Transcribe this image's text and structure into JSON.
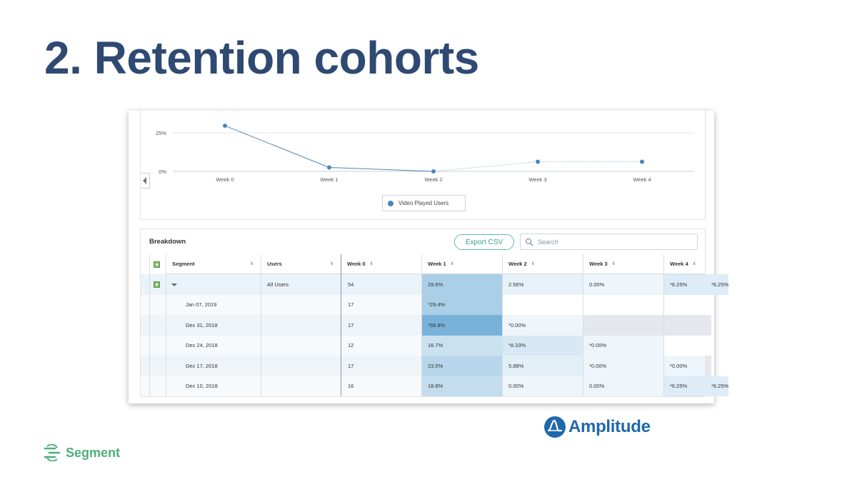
{
  "slide": {
    "title": "2. Retention cohorts"
  },
  "chart_data": {
    "type": "line",
    "categories": [
      "Week 0",
      "Week 1",
      "Week 2",
      "Week 3",
      "Week 4"
    ],
    "series": [
      {
        "name": "Video Played Users",
        "values": [
          29.6,
          2.56,
          0.0,
          6.25,
          6.25
        ],
        "color": "#4a86b8",
        "dotted_from_index": 2
      }
    ],
    "yticks": [
      "25%",
      "0%"
    ],
    "ylim": [
      0,
      32
    ],
    "grid": true,
    "legend": "bottom-center"
  },
  "breakdown": {
    "title": "Breakdown",
    "export_label": "Export CSV",
    "search_placeholder": "Search",
    "headers": [
      "Segment",
      "Users",
      "Week 0",
      "Week 1",
      "Week 2",
      "Week 3",
      "Week 4"
    ],
    "rows": [
      {
        "segment": "All Users",
        "users": "54",
        "weeks": [
          "29.6%",
          "2.56%",
          "0.00%",
          "*6.25%",
          "*6.25%"
        ],
        "shade": [
          0.6,
          0.12,
          0.05,
          0.2,
          0.2
        ]
      },
      {
        "segment": "Jan 07, 2019",
        "users": "17",
        "weeks": [
          "*29.4%",
          "",
          "",
          "",
          ""
        ],
        "shade": [
          0.6,
          -1,
          -1,
          -1,
          -1
        ]
      },
      {
        "segment": "Dec 31, 2018",
        "users": "17",
        "weeks": [
          "*58.8%",
          "*0.00%",
          "",
          "",
          ""
        ],
        "shade": [
          1.0,
          0.03,
          -2,
          -2,
          -2
        ]
      },
      {
        "segment": "Dec 24, 2018",
        "users": "12",
        "weeks": [
          "16.7%",
          "*8.33%",
          "*0.00%",
          "",
          ""
        ],
        "shade": [
          0.35,
          0.25,
          0.03,
          -1,
          -1
        ]
      },
      {
        "segment": "Dec 17, 2018",
        "users": "17",
        "weeks": [
          "23.5%",
          "5.88%",
          "*0.00%",
          "*0.00%",
          ""
        ],
        "shade": [
          0.5,
          0.15,
          0.03,
          0.03,
          -2
        ]
      },
      {
        "segment": "Dec 10, 2018",
        "users": "16",
        "weeks": [
          "18.8%",
          "0.00%",
          "0.00%",
          "*6.25%",
          "*6.25%"
        ],
        "shade": [
          0.4,
          0.05,
          0.05,
          0.2,
          0.2
        ]
      }
    ]
  },
  "logos": {
    "amplitude": "Amplitude",
    "segment": "Segment"
  },
  "colors": {
    "title": "#2f4a72",
    "line": "#4a86b8",
    "accent": "#5fb7b0",
    "amplitude": "#1f68ab",
    "segment": "#4fae7c"
  }
}
